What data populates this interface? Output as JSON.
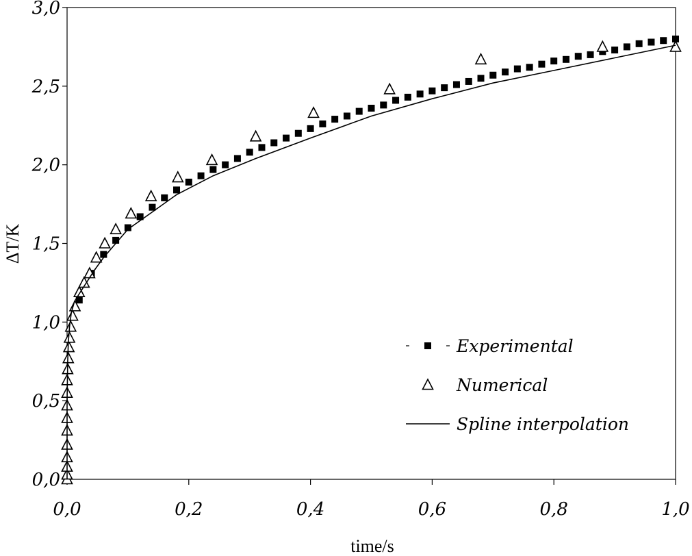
{
  "chart_data": {
    "type": "scatter",
    "xlabel": "time/s",
    "ylabel": "ΔT/K",
    "xlim": [
      0,
      1
    ],
    "ylim": [
      0,
      3
    ],
    "x_ticks": [
      "0,0",
      "0,2",
      "0,4",
      "0,6",
      "0,8",
      "1,0"
    ],
    "y_ticks": [
      "0,0",
      "0,5",
      "1,0",
      "1,5",
      "2,0",
      "2,5",
      "3,0"
    ],
    "grid": false,
    "legend_position": "bottom-right",
    "series": [
      {
        "name": "Experimental",
        "marker": "filled-square",
        "color": "#000000",
        "x": [
          0.02,
          0.04,
          0.06,
          0.08,
          0.1,
          0.12,
          0.14,
          0.16,
          0.18,
          0.2,
          0.22,
          0.24,
          0.26,
          0.28,
          0.3,
          0.32,
          0.34,
          0.36,
          0.38,
          0.4,
          0.42,
          0.44,
          0.46,
          0.48,
          0.5,
          0.52,
          0.54,
          0.56,
          0.58,
          0.6,
          0.62,
          0.64,
          0.66,
          0.68,
          0.7,
          0.72,
          0.74,
          0.76,
          0.78,
          0.8,
          0.82,
          0.84,
          0.86,
          0.88,
          0.9,
          0.92,
          0.94,
          0.96,
          0.98,
          1.0
        ],
        "y": [
          1.14,
          1.31,
          1.43,
          1.52,
          1.6,
          1.67,
          1.73,
          1.79,
          1.84,
          1.89,
          1.93,
          1.97,
          2.0,
          2.04,
          2.08,
          2.11,
          2.14,
          2.17,
          2.2,
          2.23,
          2.26,
          2.29,
          2.31,
          2.34,
          2.36,
          2.38,
          2.41,
          2.43,
          2.45,
          2.47,
          2.49,
          2.51,
          2.53,
          2.55,
          2.57,
          2.59,
          2.61,
          2.62,
          2.64,
          2.66,
          2.67,
          2.69,
          2.7,
          2.72,
          2.73,
          2.75,
          2.77,
          2.78,
          2.79,
          2.8
        ]
      },
      {
        "name": "Numerical",
        "marker": "open-triangle",
        "color": "#000000",
        "x": [
          0.0,
          0.0,
          0.0,
          0.0,
          0.0,
          0.0,
          0.0,
          0.0,
          0.0,
          0.0,
          0.001,
          0.002,
          0.003,
          0.004,
          0.006,
          0.009,
          0.013,
          0.02,
          0.028,
          0.037,
          0.048,
          0.062,
          0.08,
          0.105,
          0.138,
          0.182,
          0.238,
          0.31,
          0.405,
          0.53,
          0.68,
          0.88,
          1.0
        ],
        "y": [
          0.0,
          0.03,
          0.08,
          0.14,
          0.22,
          0.31,
          0.39,
          0.47,
          0.55,
          0.63,
          0.7,
          0.77,
          0.84,
          0.9,
          0.97,
          1.04,
          1.1,
          1.19,
          1.25,
          1.31,
          1.41,
          1.5,
          1.59,
          1.69,
          1.8,
          1.92,
          2.03,
          2.18,
          2.33,
          2.48,
          2.67,
          2.75,
          2.75
        ]
      },
      {
        "name": "Spline interpolation",
        "marker": "line",
        "color": "#000000",
        "x": [
          0.0,
          0.0,
          0.001,
          0.002,
          0.004,
          0.007,
          0.012,
          0.02,
          0.03,
          0.045,
          0.06,
          0.08,
          0.1,
          0.14,
          0.18,
          0.24,
          0.31,
          0.4,
          0.5,
          0.6,
          0.7,
          0.8,
          0.9,
          1.0
        ],
        "y": [
          0.0,
          0.5,
          0.75,
          0.87,
          0.97,
          1.06,
          1.13,
          1.18,
          1.24,
          1.33,
          1.41,
          1.5,
          1.59,
          1.7,
          1.81,
          1.93,
          2.04,
          2.17,
          2.31,
          2.42,
          2.52,
          2.6,
          2.68,
          2.76
        ]
      }
    ]
  }
}
